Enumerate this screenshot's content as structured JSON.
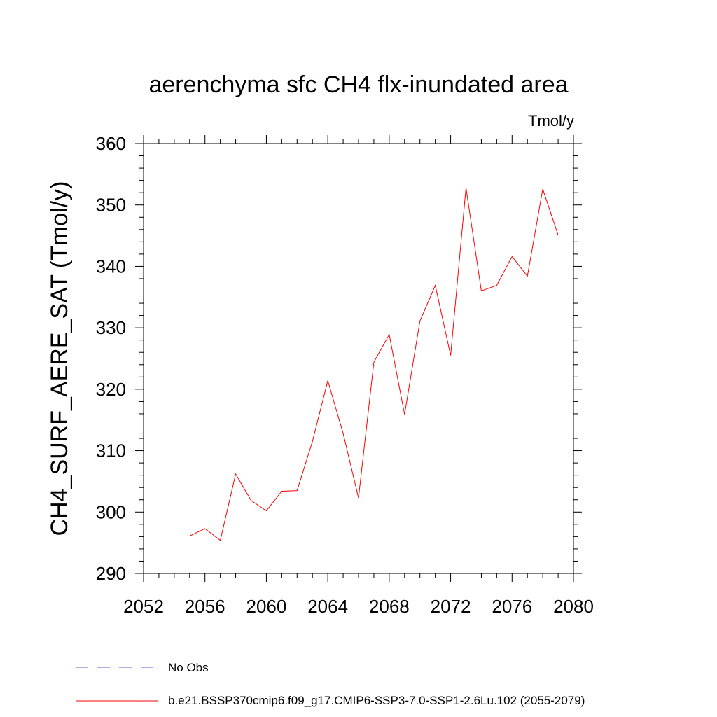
{
  "chart_data": {
    "type": "line",
    "title": "aerenchyma sfc CH4 flx-inundated area",
    "units": "Tmol/y",
    "ylabel": "CH4_SURF_AERE_SAT  (Tmol/y)",
    "xlabel": "",
    "xlim": [
      2052,
      2080
    ],
    "ylim": [
      290,
      360
    ],
    "x_ticks": [
      "2052",
      "2056",
      "2060",
      "2064",
      "2068",
      "2072",
      "2076",
      "2080"
    ],
    "y_ticks": [
      "290",
      "300",
      "310",
      "320",
      "330",
      "340",
      "350",
      "360"
    ],
    "grid": false,
    "series": [
      {
        "name": "b.e21.BSSP370cmip6.f09_g17.CMIP6-SSP3-7.0-SSP1-2.6Lu.102 (2055-2079)",
        "color": "#ff0000",
        "style": "solid",
        "x": [
          2055,
          2056,
          2057,
          2058,
          2059,
          2060,
          2061,
          2062,
          2063,
          2064,
          2065,
          2066,
          2067,
          2068,
          2069,
          2070,
          2071,
          2072,
          2073,
          2074,
          2075,
          2076,
          2077,
          2078,
          2079
        ],
        "values": [
          296.1,
          297.3,
          295.4,
          306.2,
          301.9,
          300.2,
          303.4,
          303.5,
          311.5,
          321.4,
          312.8,
          302.3,
          324.4,
          328.9,
          315.9,
          331.1,
          336.9,
          325.5,
          352.8,
          336.0,
          336.9,
          341.6,
          338.4,
          352.6,
          345.1
        ]
      }
    ],
    "legend": [
      {
        "label": "No Obs",
        "color": "#6a5acd",
        "style": "dashed"
      },
      {
        "label": "b.e21.BSSP370cmip6.f09_g17.CMIP6-SSP3-7.0-SSP1-2.6Lu.102 (2055-2079)",
        "color": "#ff0000",
        "style": "solid"
      }
    ]
  }
}
